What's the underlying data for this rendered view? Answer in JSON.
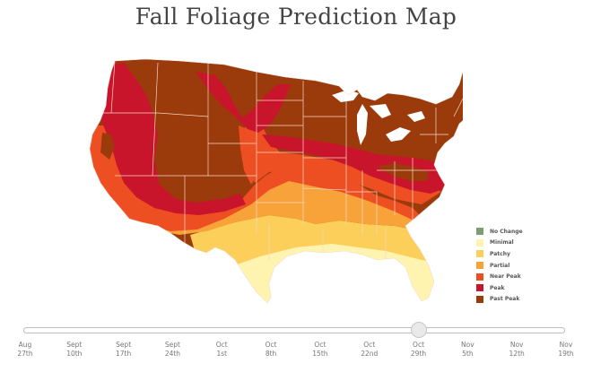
{
  "title": "Fall Foliage Prediction Map",
  "colors": {
    "no_change": "#7c9e73",
    "minimal": "#fff3b0",
    "patchy": "#fccf5b",
    "partial": "#f8a33a",
    "near_peak": "#ee4f22",
    "peak": "#c9152b",
    "past_peak": "#9b3a0a",
    "border": "#f2d9c9"
  },
  "legend": [
    {
      "label": "No Change",
      "color": "#7c9e73"
    },
    {
      "label": "Minimal",
      "color": "#fff3b0"
    },
    {
      "label": "Patchy",
      "color": "#fccf5b"
    },
    {
      "label": "Partial",
      "color": "#f8a33a"
    },
    {
      "label": "Near Peak",
      "color": "#ee4f22"
    },
    {
      "label": "Peak",
      "color": "#c9152b"
    },
    {
      "label": "Past Peak",
      "color": "#9b3a0a"
    }
  ],
  "slider": {
    "ticks": [
      {
        "month": "Aug",
        "day": "27th"
      },
      {
        "month": "Sept",
        "day": "10th"
      },
      {
        "month": "Sept",
        "day": "17th"
      },
      {
        "month": "Sept",
        "day": "24th"
      },
      {
        "month": "Oct",
        "day": "1st"
      },
      {
        "month": "Oct",
        "day": "8th"
      },
      {
        "month": "Oct",
        "day": "15th"
      },
      {
        "month": "Oct",
        "day": "22nd"
      },
      {
        "month": "Oct",
        "day": "29th"
      },
      {
        "month": "Nov",
        "day": "5th"
      },
      {
        "month": "Nov",
        "day": "12th"
      },
      {
        "month": "Nov",
        "day": "19th"
      }
    ],
    "selected_index": 8
  }
}
